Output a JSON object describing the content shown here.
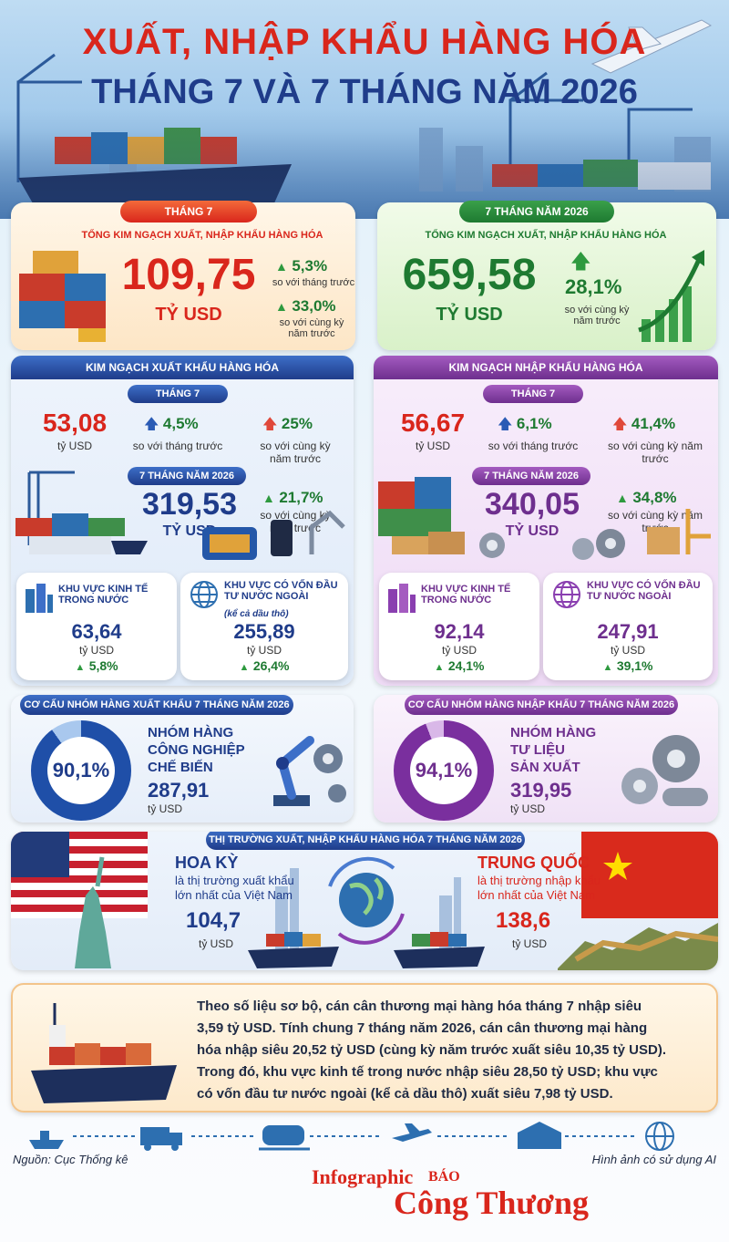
{
  "header": {
    "title_line1": "XUẤT, NHẬP KHẨU HÀNG HÓA",
    "title_line2": "THÁNG 7 VÀ 7 THÁNG NĂM 2026"
  },
  "month_total": {
    "tag": "THÁNG 7",
    "caption": "TỔNG KIM NGẠCH XUẤT, NHẬP KHẨU HÀNG HÓA",
    "value": "109,75",
    "unit": "TỶ USD",
    "change1": "5,3%",
    "change1_note": "so với tháng trước",
    "change2": "33,0%",
    "change2_note": "so với cùng kỳ năm trước"
  },
  "ytd_total": {
    "tag": "7 THÁNG NĂM 2026",
    "caption": "TỔNG KIM NGẠCH XUẤT, NHẬP KHẨU HÀNG HÓA",
    "value": "659,58",
    "unit": "TỶ USD",
    "change": "28,1%",
    "change_note": "so với cùng kỳ năm trước"
  },
  "export": {
    "title": "KIM NGẠCH XUẤT KHẨU HÀNG HÓA",
    "month_tag": "THÁNG 7",
    "month_value": "53,08",
    "month_unit": "tỷ USD",
    "mom": "4,5%",
    "mom_note": "so với tháng trước",
    "yoy": "25%",
    "yoy_note": "so với cùng kỳ năm trước",
    "ytd_tag": "7 THÁNG NĂM 2026",
    "ytd_value": "319,53",
    "ytd_unit": "TỶ USD",
    "ytd_yoy": "21,7%",
    "ytd_yoy_note": "so với cùng kỳ năm trước",
    "domestic": {
      "label": "KHU VỰC KINH TẾ TRONG NƯỚC",
      "value": "63,64",
      "unit": "tỷ USD",
      "change": "5,8%"
    },
    "fdi": {
      "label": "KHU VỰC CÓ VỐN ĐẦU TƯ NƯỚC NGOÀI",
      "note": "(kể cả dầu thô)",
      "value": "255,89",
      "unit": "tỷ USD",
      "change": "26,4%"
    }
  },
  "import": {
    "title": "KIM NGẠCH NHẬP KHẨU HÀNG HÓA",
    "month_tag": "THÁNG 7",
    "month_value": "56,67",
    "month_unit": "tỷ USD",
    "mom": "6,1%",
    "mom_note": "so với tháng trước",
    "yoy": "41,4%",
    "yoy_note": "so với cùng kỳ năm trước",
    "ytd_tag": "7 THÁNG NĂM 2026",
    "ytd_value": "340,05",
    "ytd_unit": "TỶ USD",
    "ytd_yoy": "34,8%",
    "ytd_yoy_note": "so với cùng kỳ năm trước",
    "domestic": {
      "label": "KHU VỰC KINH TẾ TRONG NƯỚC",
      "value": "92,14",
      "unit": "tỷ USD",
      "change": "24,1%"
    },
    "fdi": {
      "label": "KHU VỰC CÓ VỐN ĐẦU TƯ NƯỚC NGOÀI",
      "value": "247,91",
      "unit": "tỷ USD",
      "change": "39,1%"
    }
  },
  "export_structure": {
    "title": "CƠ CẤU NHÓM HÀNG XUẤT KHẨU 7 THÁNG NĂM 2026",
    "share": "90,1%",
    "share_fraction": 0.901,
    "group_line1": "NHÓM HÀNG",
    "group_line2": "CÔNG NGHIỆP",
    "group_line3": "CHẾ BIẾN",
    "value": "287,91",
    "unit": "tỷ USD"
  },
  "import_structure": {
    "title": "CƠ CẤU NHÓM HÀNG NHẬP KHẨU 7 THÁNG NĂM 2026",
    "share": "94,1%",
    "share_fraction": 0.941,
    "group_line1": "NHÓM HÀNG",
    "group_line2": "TƯ LIỆU",
    "group_line3": "SẢN XUẤT",
    "value": "319,95",
    "unit": "tỷ USD"
  },
  "markets": {
    "title": "THỊ TRƯỜNG XUẤT, NHẬP KHẨU HÀNG HÓA 7 THÁNG NĂM 2026",
    "us": {
      "name": "HOA KỲ",
      "desc_line1": "là thị trường xuất khẩu",
      "desc_line2": "lớn nhất của Việt Nam",
      "value": "104,7",
      "unit": "tỷ USD"
    },
    "cn": {
      "name": "TRUNG QUỐC",
      "desc_line1": "là thị trường nhập khẩu",
      "desc_line2": "lớn nhất của Việt Nam",
      "value": "138,6",
      "unit": "tỷ USD"
    }
  },
  "summary": {
    "line1": "Theo số liệu sơ bộ, cán cân thương mại hàng hóa tháng 7 nhập siêu",
    "line2": "3,59 tỷ USD. Tính chung 7 tháng năm 2026, cán cân thương mại hàng",
    "line3": "hóa nhập siêu 20,52 tỷ USD (cùng kỳ năm trước xuất siêu 10,35 tỷ USD).",
    "line4": "Trong đó, khu vực kinh tế trong nước nhập siêu 28,50 tỷ USD; khu vực",
    "line5": "có vốn đầu tư nước ngoài (kể cả dầu thô) xuất siêu 7,98 tỷ USD."
  },
  "footer": {
    "source": "Nguồn: Cục Thống kê",
    "ai_note": "Hình ảnh có sử dụng AI",
    "brand_line1": "Infographic",
    "brand_line2": "BÁO",
    "brand_line3": "Công Thương"
  },
  "colors": {
    "red": "#d9261c",
    "navy": "#1f3c8a",
    "green": "#1e7a31",
    "purple": "#6e2f8e"
  }
}
